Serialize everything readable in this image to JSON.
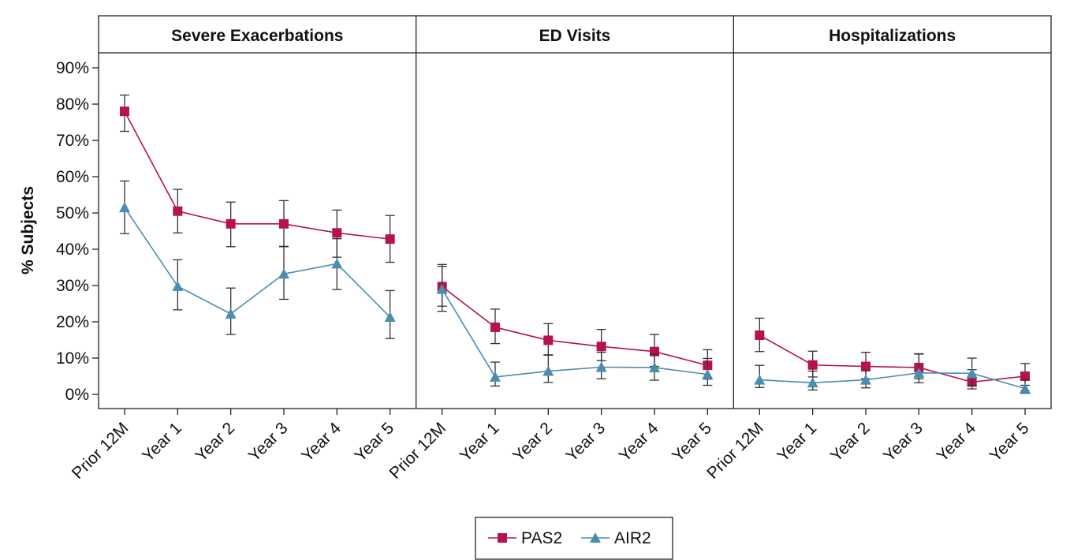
{
  "chart_data": {
    "type": "line",
    "ylabel": "% Subjects",
    "ylim": [
      0,
      90
    ],
    "y_ticks": [
      "0%",
      "10%",
      "20%",
      "30%",
      "40%",
      "50%",
      "60%",
      "70%",
      "80%",
      "90%"
    ],
    "categories": [
      "Prior 12M",
      "Year 1",
      "Year 2",
      "Year 3",
      "Year 4",
      "Year 5"
    ],
    "legend": [
      "PAS2",
      "AIR2"
    ],
    "legend_position": "bottom-center",
    "colors": {
      "PAS2": "#b5124f",
      "AIR2": "#4a8db0"
    },
    "panels": [
      {
        "title": "Severe Exacerbations",
        "series": [
          {
            "name": "PAS2",
            "values": [
              78,
              50.5,
              47,
              47,
              44.5,
              42.8
            ],
            "ci_low": [
              72.5,
              44.5,
              40.7,
              40.7,
              37.8,
              36.4
            ],
            "ci_high": [
              82.5,
              56.5,
              53,
              53.4,
              50.8,
              49.3
            ]
          },
          {
            "name": "AIR2",
            "values": [
              51.5,
              29.8,
              22.2,
              33.2,
              36,
              21.3
            ],
            "ci_low": [
              44.3,
              23.3,
              16.5,
              26.2,
              28.9,
              15.4
            ],
            "ci_high": [
              58.8,
              37.1,
              29.3,
              40.8,
              42.9,
              28.6
            ]
          }
        ]
      },
      {
        "title": "ED Visits",
        "series": [
          {
            "name": "PAS2",
            "values": [
              29.7,
              18.5,
              14.9,
              13.2,
              11.8,
              8
            ],
            "ci_low": [
              24.3,
              14,
              10.8,
              9.3,
              7.7,
              4.2
            ],
            "ci_high": [
              35.8,
              23.5,
              19.5,
              17.9,
              16.5,
              12.3
            ]
          },
          {
            "name": "AIR2",
            "values": [
              29,
              4.8,
              6.4,
              7.5,
              7.4,
              5.5
            ],
            "ci_low": [
              22.9,
              2.3,
              3.3,
              4.3,
              3.9,
              2.5
            ],
            "ci_high": [
              35.3,
              8.9,
              10.9,
              11.6,
              11.1,
              9.9
            ]
          }
        ]
      },
      {
        "title": "Hospitalizations",
        "series": [
          {
            "name": "PAS2",
            "values": [
              16.3,
              8.1,
              7.7,
              7.4,
              3.4,
              5
            ],
            "ci_low": [
              11.8,
              4.8,
              4.3,
              4.3,
              1.5,
              2.5
            ],
            "ci_high": [
              21,
              11.9,
              11.6,
              11.1,
              6.8,
              8.5
            ]
          },
          {
            "name": "AIR2",
            "values": [
              4,
              3.2,
              4,
              5.9,
              5.8,
              1.6
            ],
            "ci_low": [
              1.9,
              1.2,
              1.8,
              3.2,
              2.5,
              0.3
            ],
            "ci_high": [
              8,
              6.4,
              6.5,
              11.2,
              10,
              4.1
            ]
          }
        ]
      }
    ]
  }
}
